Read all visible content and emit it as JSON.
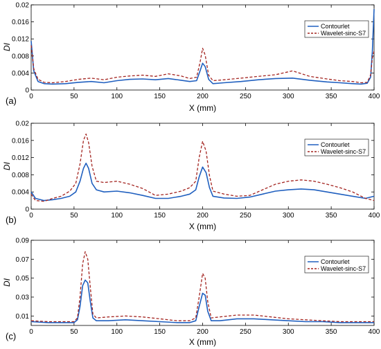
{
  "chart_data": [
    {
      "type": "line",
      "panel_label": "(a)",
      "xlabel": "X (mm)",
      "ylabel": "DI",
      "xlim": [
        0,
        400
      ],
      "ylim": [
        0,
        0.02
      ],
      "xticks": [
        "0",
        "50",
        "100",
        "150",
        "200",
        "250",
        "300",
        "350",
        "400"
      ],
      "yticks": [
        "0",
        "0.004",
        "0.008",
        "0.012",
        "0.016",
        "0.02"
      ],
      "legend_position": "top-right",
      "series": [
        {
          "name": "Contourlet",
          "color": "#1f5fbf",
          "dash": "solid",
          "x": [
            0,
            3,
            8,
            15,
            25,
            40,
            55,
            70,
            85,
            100,
            115,
            130,
            145,
            160,
            175,
            185,
            193,
            197,
            200,
            203,
            207,
            212,
            225,
            245,
            265,
            285,
            305,
            325,
            345,
            360,
            375,
            385,
            392,
            396,
            398,
            400
          ],
          "y": [
            0.0115,
            0.0045,
            0.002,
            0.0015,
            0.0014,
            0.0015,
            0.0018,
            0.002,
            0.0017,
            0.0022,
            0.0025,
            0.0026,
            0.0024,
            0.0027,
            0.0023,
            0.002,
            0.0022,
            0.0045,
            0.0063,
            0.0055,
            0.0025,
            0.0015,
            0.0017,
            0.002,
            0.0024,
            0.0027,
            0.0028,
            0.0023,
            0.0019,
            0.0017,
            0.0015,
            0.0014,
            0.0016,
            0.003,
            0.009,
            0.019
          ]
        },
        {
          "name": "Wavelet-sinc-S7",
          "color": "#a3231f",
          "dash": "dashed",
          "x": [
            0,
            3,
            8,
            15,
            25,
            40,
            55,
            70,
            85,
            100,
            115,
            130,
            145,
            160,
            175,
            185,
            193,
            197,
            200,
            203,
            207,
            212,
            225,
            245,
            265,
            285,
            305,
            325,
            345,
            360,
            375,
            385,
            392,
            396,
            398,
            400
          ],
          "y": [
            0.0105,
            0.005,
            0.0025,
            0.0018,
            0.0017,
            0.002,
            0.0025,
            0.0028,
            0.0024,
            0.003,
            0.0033,
            0.0035,
            0.0032,
            0.0038,
            0.0033,
            0.0027,
            0.003,
            0.0065,
            0.0098,
            0.0082,
            0.0035,
            0.0022,
            0.0024,
            0.0028,
            0.0032,
            0.0036,
            0.0045,
            0.0032,
            0.0026,
            0.0022,
            0.002,
            0.0017,
            0.0018,
            0.0035,
            0.0075,
            0.0092
          ]
        }
      ]
    },
    {
      "type": "line",
      "panel_label": "(b)",
      "xlabel": "X (mm)",
      "ylabel": "DI",
      "xlim": [
        0,
        400
      ],
      "ylim": [
        0,
        0.02
      ],
      "xticks": [
        "0",
        "50",
        "100",
        "150",
        "200",
        "250",
        "300",
        "350",
        "400"
      ],
      "yticks": [
        "0",
        "0.004",
        "0.008",
        "0.012",
        "0.016",
        "0.02"
      ],
      "legend_position": "top-right",
      "series": [
        {
          "name": "Contourlet",
          "color": "#1f5fbf",
          "dash": "solid",
          "x": [
            0,
            5,
            15,
            25,
            35,
            45,
            52,
            57,
            61,
            64,
            67,
            71,
            76,
            85,
            100,
            115,
            130,
            145,
            160,
            175,
            185,
            192,
            196,
            200,
            204,
            208,
            212,
            225,
            240,
            255,
            270,
            285,
            300,
            315,
            330,
            345,
            360,
            375,
            390,
            400
          ],
          "y": [
            0.004,
            0.0025,
            0.002,
            0.0022,
            0.0025,
            0.003,
            0.004,
            0.0065,
            0.0095,
            0.0107,
            0.0095,
            0.006,
            0.0045,
            0.004,
            0.0042,
            0.0038,
            0.0032,
            0.0025,
            0.0025,
            0.003,
            0.0035,
            0.0045,
            0.0075,
            0.0098,
            0.0085,
            0.005,
            0.003,
            0.0026,
            0.0025,
            0.0028,
            0.0035,
            0.0042,
            0.0045,
            0.0047,
            0.0045,
            0.004,
            0.0035,
            0.003,
            0.0025,
            0.003
          ]
        },
        {
          "name": "Wavelet-sinc-S7",
          "color": "#a3231f",
          "dash": "dashed",
          "x": [
            0,
            5,
            15,
            25,
            35,
            45,
            52,
            57,
            61,
            64,
            67,
            71,
            76,
            85,
            100,
            115,
            130,
            145,
            160,
            175,
            185,
            192,
            196,
            200,
            204,
            208,
            212,
            225,
            240,
            255,
            270,
            285,
            300,
            315,
            330,
            345,
            360,
            375,
            390,
            400
          ],
          "y": [
            0.0035,
            0.002,
            0.0018,
            0.0025,
            0.003,
            0.0042,
            0.006,
            0.0105,
            0.016,
            0.0175,
            0.0155,
            0.01,
            0.0065,
            0.0062,
            0.0065,
            0.0058,
            0.0048,
            0.0032,
            0.0035,
            0.0042,
            0.005,
            0.0065,
            0.012,
            0.0158,
            0.0135,
            0.0078,
            0.0042,
            0.0035,
            0.003,
            0.0032,
            0.0045,
            0.0058,
            0.0065,
            0.0068,
            0.0065,
            0.0058,
            0.005,
            0.004,
            0.0025,
            0.002
          ]
        }
      ]
    },
    {
      "type": "line",
      "panel_label": "(c)",
      "xlabel": "X (mm)",
      "ylabel": "DI",
      "xlim": [
        0,
        400
      ],
      "ylim": [
        0,
        0.09
      ],
      "xticks": [
        "0",
        "50",
        "100",
        "150",
        "200",
        "250",
        "300",
        "350",
        "400"
      ],
      "yticks": [
        "0.01",
        "0.03",
        "0.05",
        "0.07",
        "0.09"
      ],
      "yticks_values": [
        0.01,
        0.03,
        0.05,
        0.07,
        0.09
      ],
      "legend_position": "top-right",
      "series": [
        {
          "name": "Contourlet",
          "color": "#1f5fbf",
          "dash": "solid",
          "x": [
            0,
            20,
            40,
            50,
            54,
            57,
            60,
            63,
            66,
            69,
            72,
            76,
            90,
            110,
            130,
            150,
            170,
            185,
            192,
            196,
            200,
            203,
            206,
            210,
            220,
            240,
            260,
            280,
            300,
            320,
            340,
            360,
            380,
            400
          ],
          "y": [
            0.004,
            0.003,
            0.003,
            0.003,
            0.006,
            0.02,
            0.042,
            0.048,
            0.045,
            0.025,
            0.008,
            0.005,
            0.005,
            0.006,
            0.005,
            0.004,
            0.003,
            0.003,
            0.005,
            0.02,
            0.034,
            0.032,
            0.015,
            0.005,
            0.005,
            0.007,
            0.007,
            0.006,
            0.005,
            0.004,
            0.004,
            0.003,
            0.003,
            0.003
          ]
        },
        {
          "name": "Wavelet-sinc-S7",
          "color": "#a3231f",
          "dash": "dashed",
          "x": [
            0,
            20,
            40,
            50,
            54,
            57,
            60,
            63,
            66,
            69,
            72,
            76,
            90,
            110,
            130,
            150,
            170,
            185,
            192,
            196,
            200,
            203,
            206,
            210,
            220,
            240,
            260,
            280,
            300,
            320,
            340,
            360,
            380,
            400
          ],
          "y": [
            0.005,
            0.004,
            0.004,
            0.004,
            0.008,
            0.03,
            0.065,
            0.078,
            0.07,
            0.04,
            0.012,
            0.008,
            0.009,
            0.01,
            0.009,
            0.007,
            0.005,
            0.005,
            0.008,
            0.03,
            0.055,
            0.05,
            0.025,
            0.008,
            0.009,
            0.011,
            0.011,
            0.009,
            0.007,
            0.006,
            0.005,
            0.004,
            0.004,
            0.004
          ]
        }
      ]
    }
  ]
}
